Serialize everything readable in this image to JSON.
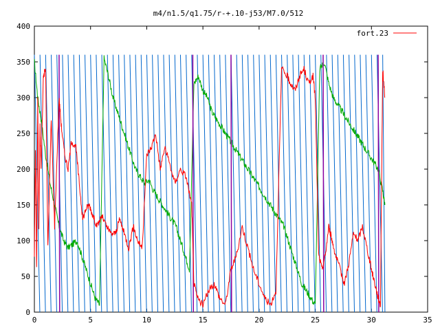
{
  "chart_data": {
    "type": "line",
    "title": "m4/n1.5/q1.75/r-+.10-j53/M7.0/512",
    "xlabel": "",
    "ylabel": "",
    "xlim": [
      0,
      35
    ],
    "ylim": [
      0,
      400
    ],
    "xticks": [
      0,
      5,
      10,
      15,
      20,
      25,
      30,
      35
    ],
    "yticks": [
      0,
      50,
      100,
      150,
      200,
      250,
      300,
      350,
      400
    ],
    "xtick_labels": [
      "0",
      "5",
      "10",
      "15",
      "20",
      "25",
      "30",
      "35"
    ],
    "ytick_labels": [
      "0",
      "50",
      "100",
      "150",
      "200",
      "250",
      "300",
      "350",
      "400"
    ],
    "grid": false,
    "legend_position": "top-right",
    "wrap_modulus": 360,
    "series": [
      {
        "name": "fort.23",
        "color": "#ff0000",
        "x": [
          0.0,
          0.1,
          0.2,
          0.3,
          0.4,
          0.5,
          0.6,
          0.8,
          1.0,
          1.2,
          1.5,
          1.8,
          2.2,
          2.4,
          2.7,
          3.0,
          3.3,
          3.7,
          4.0,
          4.3,
          4.6,
          4.9,
          5.2,
          5.6,
          6.0,
          6.4,
          6.8,
          7.2,
          7.6,
          8.0,
          8.4,
          8.8,
          9.2,
          9.6,
          10.0,
          10.4,
          10.8,
          11.2,
          11.6,
          12.0,
          12.5,
          13.0,
          13.5,
          14.0,
          14.2,
          14.5,
          15.0,
          15.5,
          16.0,
          16.5,
          17.0,
          17.5,
          18.0,
          18.5,
          19.0,
          19.5,
          20.0,
          20.5,
          21.0,
          21.5,
          22.0,
          22.5,
          22.8,
          23.2,
          23.6,
          24.0,
          24.4,
          24.8,
          25.0,
          25.3,
          25.6,
          25.9,
          26.2,
          26.5,
          26.8,
          27.2,
          27.6,
          28.0,
          28.4,
          28.8,
          29.2,
          29.6,
          30.0,
          30.3,
          30.6,
          30.8,
          31.0,
          31.2
        ],
        "values": [
          80,
          230,
          60,
          300,
          120,
          260,
          200,
          330,
          340,
          90,
          270,
          120,
          300,
          260,
          220,
          200,
          240,
          230,
          180,
          130,
          145,
          150,
          135,
          120,
          135,
          120,
          110,
          110,
          130,
          110,
          90,
          120,
          100,
          90,
          220,
          230,
          250,
          200,
          230,
          210,
          180,
          200,
          190,
          150,
          40,
          20,
          10,
          30,
          40,
          20,
          10,
          60,
          80,
          120,
          90,
          60,
          40,
          20,
          10,
          30,
          340,
          330,
          320,
          310,
          330,
          340,
          320,
          330,
          300,
          80,
          60,
          80,
          120,
          100,
          80,
          60,
          40,
          70,
          110,
          100,
          120,
          90,
          60,
          40,
          20,
          10,
          340,
          300
        ]
      },
      {
        "name": "",
        "color": "#00aa00",
        "x": [
          0.0,
          0.3,
          0.6,
          1.0,
          1.4,
          1.8,
          2.2,
          2.6,
          3.0,
          3.4,
          3.8,
          4.2,
          4.6,
          5.0,
          5.4,
          5.8,
          6.2,
          6.6,
          7.0,
          7.4,
          7.8,
          8.2,
          8.6,
          9.0,
          9.4,
          9.8,
          10.2,
          10.6,
          11.0,
          11.4,
          11.8,
          12.2,
          12.6,
          13.0,
          13.4,
          13.8,
          14.2,
          14.6,
          15.0,
          15.4,
          15.8,
          16.2,
          16.6,
          17.0,
          17.4,
          17.8,
          18.2,
          18.6,
          19.0,
          19.4,
          19.8,
          20.2,
          20.6,
          21.0,
          21.4,
          21.8,
          22.2,
          22.6,
          23.0,
          23.4,
          23.8,
          24.2,
          24.6,
          25.0,
          25.4,
          25.8,
          26.2,
          26.6,
          27.0,
          27.4,
          27.8,
          28.2,
          28.6,
          29.0,
          29.4,
          29.8,
          30.2,
          30.6,
          31.0,
          31.2
        ],
        "values": [
          350,
          300,
          270,
          220,
          180,
          150,
          120,
          100,
          90,
          95,
          100,
          80,
          60,
          40,
          20,
          10,
          355,
          330,
          300,
          280,
          260,
          240,
          220,
          200,
          190,
          180,
          185,
          170,
          160,
          150,
          140,
          130,
          120,
          100,
          80,
          60,
          320,
          330,
          310,
          300,
          280,
          270,
          260,
          250,
          240,
          230,
          220,
          210,
          200,
          190,
          180,
          170,
          160,
          150,
          140,
          130,
          120,
          100,
          80,
          60,
          40,
          30,
          20,
          10,
          340,
          350,
          320,
          300,
          290,
          280,
          270,
          260,
          250,
          240,
          230,
          220,
          210,
          200,
          170,
          150
        ]
      },
      {
        "name": "",
        "color": "#0066cc",
        "period": 0.5,
        "x_start": 0.0,
        "x_end": 31.2,
        "values": [
          360,
          0
        ]
      },
      {
        "name": "",
        "color": "#8b00a0",
        "x": [
          2.2,
          2.25,
          14.1,
          14.15,
          17.5,
          17.55,
          25.7,
          25.75,
          30.6,
          30.65
        ],
        "values": [
          360,
          0,
          360,
          0,
          360,
          0,
          360,
          0,
          360,
          0
        ]
      }
    ]
  }
}
